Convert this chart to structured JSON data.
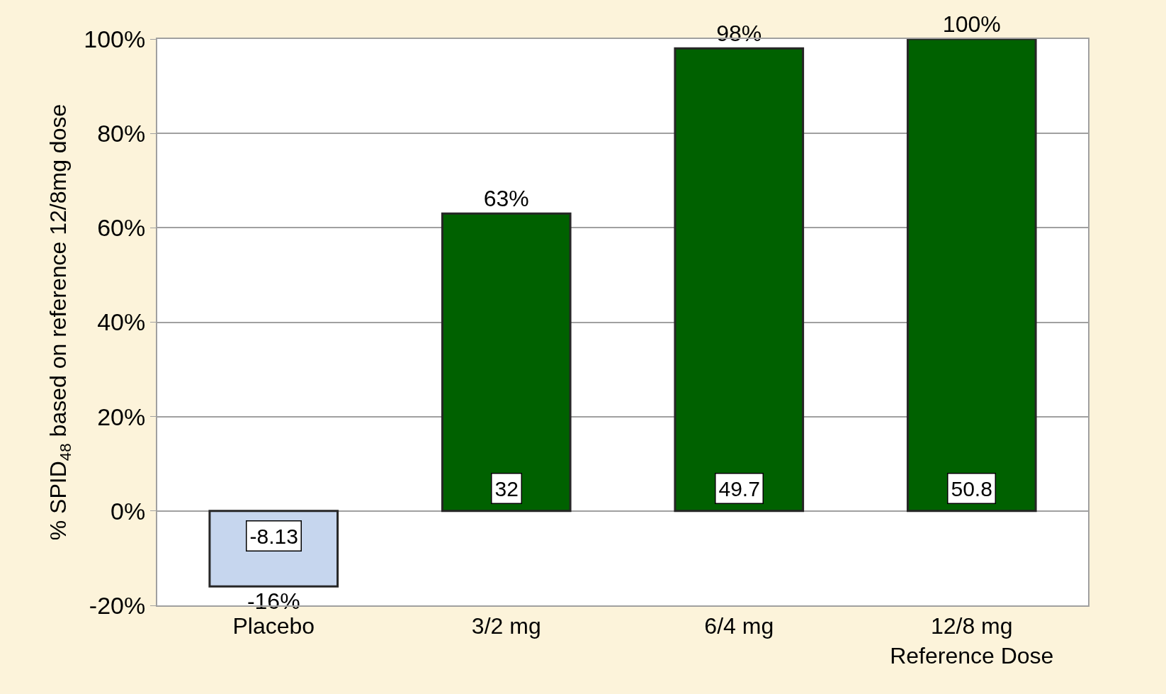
{
  "chart_data": {
    "type": "bar",
    "ylabel": "% SPID$_{48}$ based on reference 12/8mg dose",
    "categories": [
      "Placebo",
      "3/2 mg",
      "6/4 mg",
      "12/8 mg\nReference Dose"
    ],
    "values": [
      -16,
      63,
      98,
      100
    ],
    "value_labels": [
      "-16%",
      "63%",
      "98%",
      "100%"
    ],
    "colors": [
      "#c6d6ee",
      "#006100",
      "#006100",
      "#006100"
    ],
    "ylim": [
      -20,
      100
    ],
    "yticks": [
      {
        "value": -20,
        "label": "-20%"
      },
      {
        "value": 0,
        "label": "0%"
      },
      {
        "value": 20,
        "label": "20%"
      },
      {
        "value": 40,
        "label": "40%"
      },
      {
        "value": 60,
        "label": "60%"
      },
      {
        "value": 80,
        "label": "80%"
      },
      {
        "value": 100,
        "label": "100%"
      }
    ],
    "grid": "y",
    "annotations": [
      "-8.13",
      "32",
      "49.7",
      "50.8"
    ]
  }
}
